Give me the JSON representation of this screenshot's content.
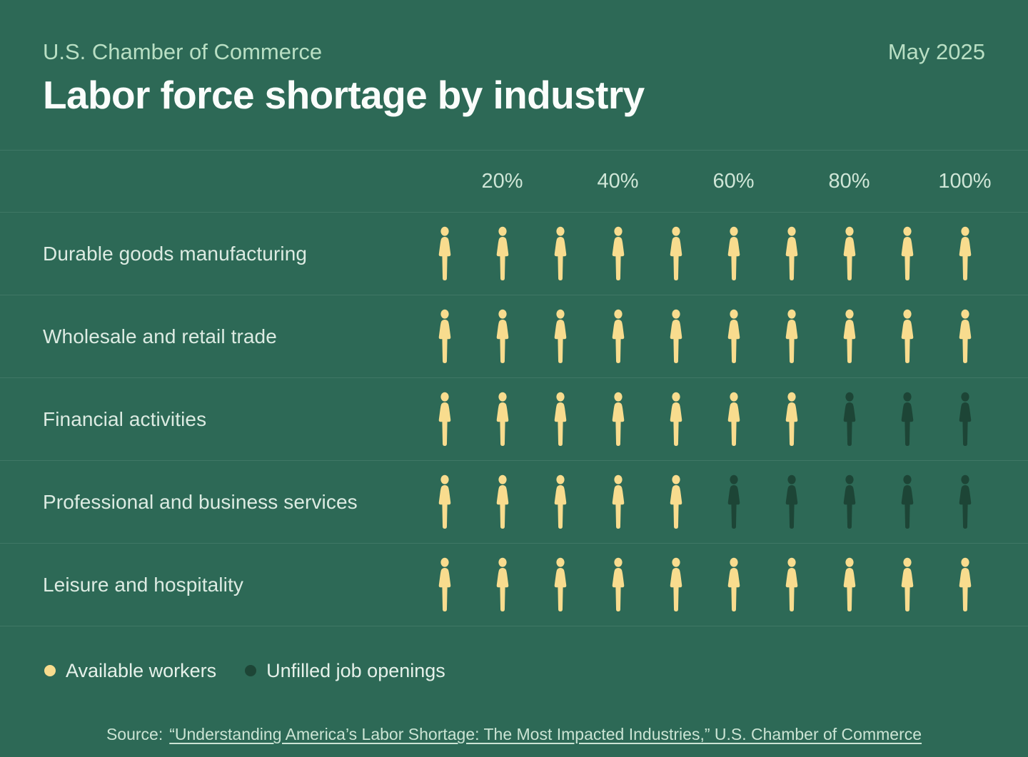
{
  "header": {
    "eyebrow": "U.S. Chamber of Commerce",
    "date": "May 2025",
    "title": "Labor force shortage by industry"
  },
  "chart_data": {
    "type": "bar",
    "variant": "pictogram-unit-chart",
    "title": "Labor force shortage by industry",
    "unit_icon": "person-icon",
    "unit_percent": 10,
    "icons_per_row": 10,
    "categories": [
      "Durable goods manufacturing",
      "Wholesale and retail trade",
      "Financial activities",
      "Professional and business services",
      "Leisure and hospitality"
    ],
    "series": [
      {
        "name": "Available workers",
        "color": "#f8dc8e",
        "values": [
          100,
          100,
          70,
          50,
          100
        ]
      },
      {
        "name": "Unfilled job openings",
        "color": "#1d4536",
        "values": [
          0,
          0,
          30,
          50,
          0
        ]
      }
    ],
    "x_ticks": [
      "20%",
      "40%",
      "60%",
      "80%",
      "100%"
    ],
    "xlim": [
      0,
      100
    ],
    "grid": false,
    "legend_position": "bottom-left"
  },
  "legend": {
    "items": [
      {
        "label": "Available workers",
        "color": "#f8dc8e",
        "marker": "dot-icon"
      },
      {
        "label": "Unfilled job openings",
        "color": "#1d4536",
        "marker": "dot-icon"
      }
    ]
  },
  "source": {
    "prefix": "Source:",
    "link_text": "“Understanding America’s Labor Shortage: The Most Impacted Industries,” U.S. Chamber of Commerce"
  },
  "colors": {
    "background": "#2d6956",
    "divider": "rgba(223,243,231,0.10)",
    "title_text": "#fafdfb",
    "eyebrow_text": "#b9dfc4",
    "tick_text": "#cfe6d7",
    "row_label_text": "#dcebe2",
    "legend_text": "#e6f1ea",
    "source_text": "#cbe4d4",
    "available_worker": "#f8dc8e",
    "unfilled_opening": "#1d4536"
  }
}
